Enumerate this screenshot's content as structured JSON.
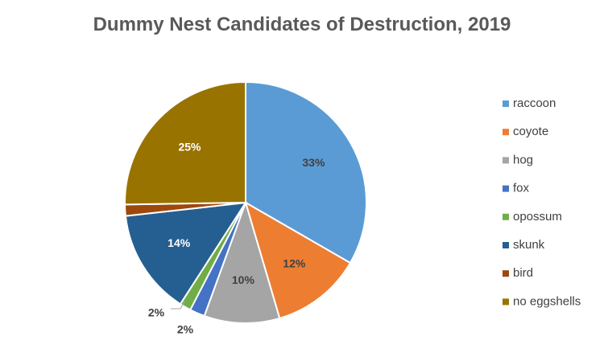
{
  "chart_data": {
    "type": "pie",
    "title": "Dummy Nest Candidates of Destruction, 2019",
    "categories": [
      "raccoon",
      "coyote",
      "hog",
      "fox",
      "opossum",
      "skunk",
      "bird",
      "no eggshells"
    ],
    "values": [
      33,
      12,
      10,
      2,
      1.5,
      14,
      1.5,
      25
    ],
    "data_labels": [
      "33%",
      "12%",
      "10%",
      "2%",
      "2%",
      "14%",
      "",
      "25%"
    ],
    "colors": [
      "#5B9BD5",
      "#ED7D31",
      "#A5A5A5",
      "#4472C4",
      "#70AD47",
      "#255E91",
      "#9E480E",
      "#997300"
    ],
    "label_colors": [
      "#404040",
      "#404040",
      "#404040",
      "#404040",
      "#404040",
      "#ffffff",
      "#404040",
      "#ffffff"
    ],
    "legend_position": "right",
    "start_angle": "12 o'clock, clockwise"
  }
}
